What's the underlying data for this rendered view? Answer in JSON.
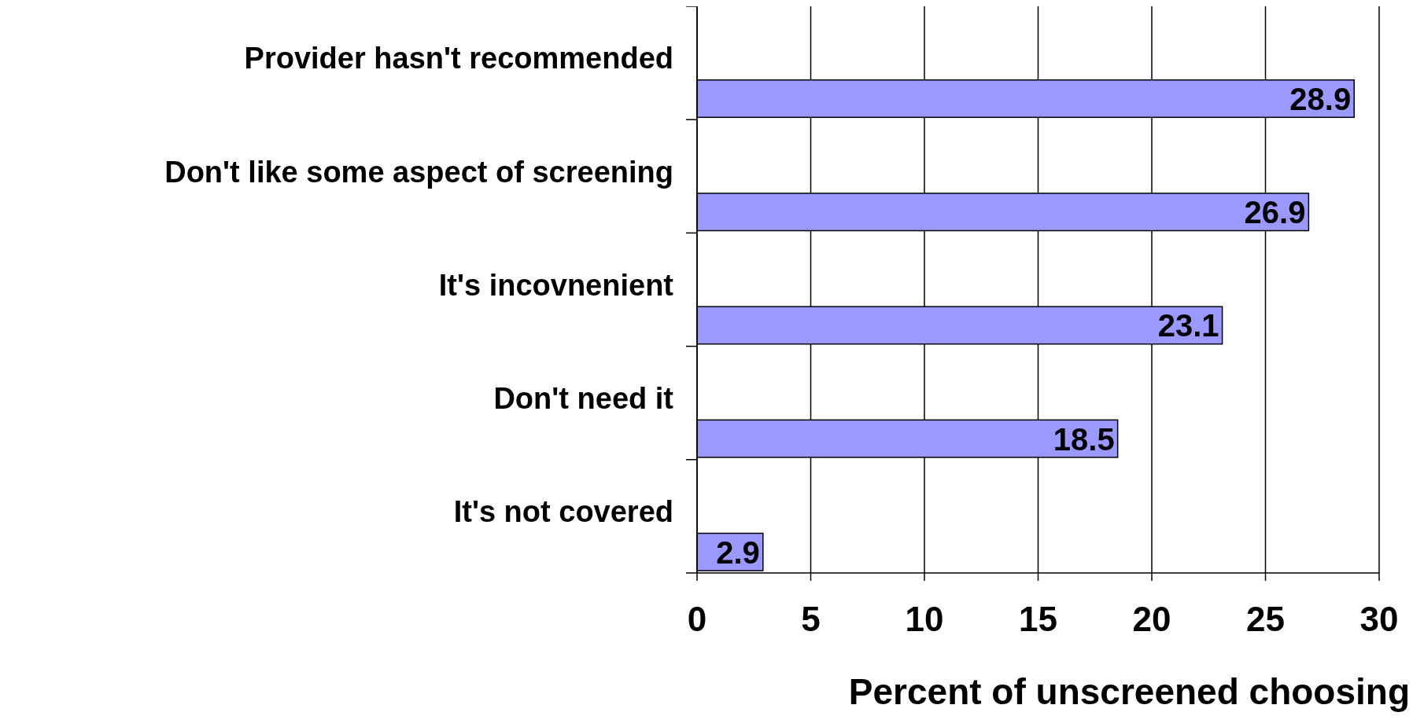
{
  "chart_data": {
    "type": "bar",
    "orientation": "horizontal",
    "categories": [
      "Provider hasn't recommended",
      "Don't like some aspect of screening",
      "It's incovnenient",
      "Don't need it",
      "It's not covered"
    ],
    "values": [
      28.9,
      26.9,
      23.1,
      18.5,
      2.9
    ],
    "color": "#9999ff",
    "xlim": [
      0,
      30
    ],
    "xticks": [
      0,
      5,
      10,
      15,
      20,
      25,
      30
    ],
    "xlabel": "Percent of unscreened choosing",
    "grid": "x",
    "data_labels": true
  }
}
